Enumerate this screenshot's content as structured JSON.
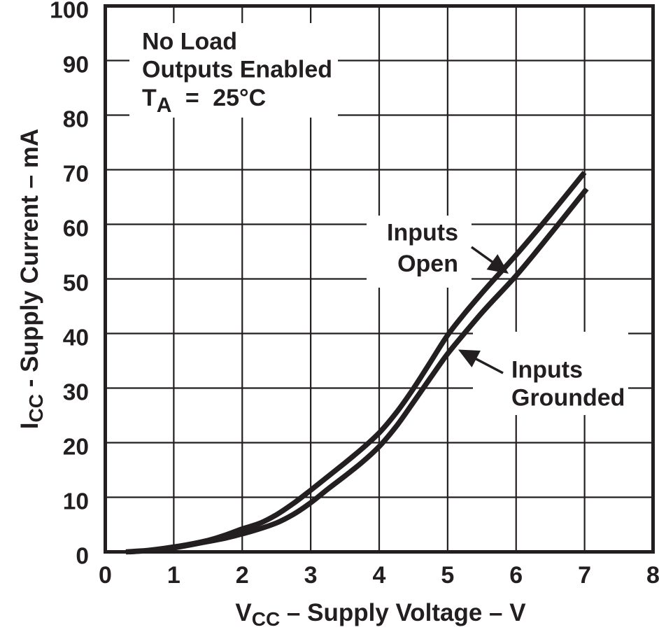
{
  "chart_data": {
    "type": "line",
    "title": "",
    "note_lines": [
      [
        {
          "t": "No Load"
        }
      ],
      [
        {
          "t": "Outputs Enabled"
        }
      ],
      [
        {
          "t": "T"
        },
        {
          "t": "A",
          "sub": true
        },
        {
          "t": " =",
          "dx": 10
        },
        {
          "t": " 25°C",
          "dx": 10
        }
      ]
    ],
    "x_axis": {
      "label_parts": [
        {
          "t": "V"
        },
        {
          "t": "CC",
          "sub": true
        },
        {
          "t": " – Supply Voltage – V"
        }
      ],
      "min": 0,
      "max": 8,
      "ticks": [
        0,
        1,
        2,
        3,
        4,
        5,
        6,
        7,
        8
      ]
    },
    "y_axis": {
      "label_parts": [
        {
          "t": "I"
        },
        {
          "t": "CC",
          "sub": true
        },
        {
          "t": " - Supply Current – mA"
        }
      ],
      "min": 0,
      "max": 100,
      "ticks": [
        0,
        10,
        20,
        30,
        40,
        50,
        60,
        70,
        80,
        90,
        100
      ]
    },
    "grid": true,
    "legend_position": "inline-labels",
    "colors": {
      "ink": "#231f20",
      "background": "#ffffff"
    },
    "series": [
      {
        "name": "Inputs Open",
        "label_lines": [
          "Inputs",
          "Open"
        ],
        "points": [
          [
            0.3,
            0
          ],
          [
            0.6,
            0.25
          ],
          [
            1,
            0.9
          ],
          [
            1.5,
            2.1
          ],
          [
            1.75,
            3.05
          ],
          [
            2,
            4.2
          ],
          [
            2.25,
            5.2
          ],
          [
            2.5,
            6.8
          ],
          [
            2.75,
            8.9
          ],
          [
            3,
            11.3
          ],
          [
            3.25,
            13.8
          ],
          [
            3.5,
            16.3
          ],
          [
            3.75,
            18.9
          ],
          [
            4,
            21.8
          ],
          [
            4.25,
            25.5
          ],
          [
            4.5,
            29.9
          ],
          [
            4.75,
            34.8
          ],
          [
            5,
            39.7
          ],
          [
            5.25,
            43.7
          ],
          [
            5.5,
            47.4
          ],
          [
            6,
            54.4
          ],
          [
            6.5,
            61.8
          ],
          [
            7,
            69.5
          ]
        ]
      },
      {
        "name": "Inputs Grounded",
        "label_lines": [
          "Inputs",
          "Grounded"
        ],
        "points": [
          [
            0.35,
            0
          ],
          [
            0.7,
            0.3
          ],
          [
            1,
            0.75
          ],
          [
            1.5,
            1.9
          ],
          [
            1.75,
            2.5
          ],
          [
            2,
            3.3
          ],
          [
            2.25,
            4.2
          ],
          [
            2.5,
            5.3
          ],
          [
            2.75,
            6.9
          ],
          [
            3,
            9
          ],
          [
            3.25,
            11.5
          ],
          [
            3.5,
            13.9
          ],
          [
            3.75,
            16.4
          ],
          [
            4,
            19.3
          ],
          [
            4.25,
            23
          ],
          [
            4.5,
            27.4
          ],
          [
            4.75,
            31.9
          ],
          [
            5,
            36.3
          ],
          [
            5.25,
            40.1
          ],
          [
            5.5,
            43.8
          ],
          [
            6,
            50.6
          ],
          [
            6.5,
            58.2
          ],
          [
            7.03,
            66.5
          ]
        ]
      }
    ]
  }
}
